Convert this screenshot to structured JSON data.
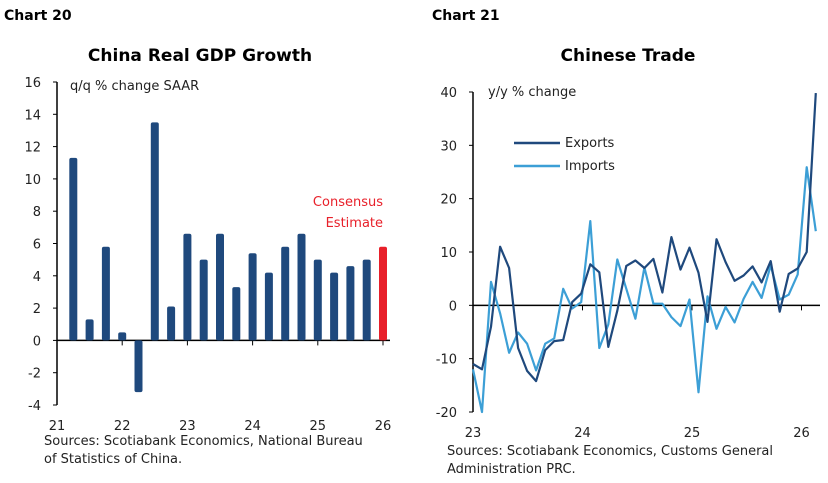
{
  "chart_data": [
    {
      "type": "bar",
      "header": "Chart 20",
      "title": "China Real GDP Growth",
      "ylabel": "q/q % change SAAR",
      "ylim": [
        -4,
        16
      ],
      "yticks": [
        16,
        14,
        12,
        10,
        8,
        6,
        4,
        2,
        0,
        -2,
        -4
      ],
      "xticks": [
        "21",
        "22",
        "23",
        "24",
        "25",
        "26"
      ],
      "values": [
        11.3,
        1.3,
        5.8,
        0.5,
        -3.2,
        13.5,
        2.1,
        6.6,
        5.0,
        6.6,
        3.3,
        5.4,
        4.2,
        5.8,
        6.6,
        5.0,
        4.2,
        4.6,
        5.0,
        5.8
      ],
      "bar_color": "#1f497d",
      "estimate_color": "#e8202a",
      "annotation": [
        "Consensus",
        "Estimate"
      ],
      "source": [
        "Sources: Scotiabank Economics, National Bureau",
        "of Statistics of China."
      ]
    },
    {
      "type": "line",
      "header": "Chart 21",
      "title": "Chinese Trade",
      "ylabel": "y/y % change",
      "ylim": [
        -20,
        40
      ],
      "yticks": [
        40,
        30,
        20,
        10,
        0,
        -10,
        -20
      ],
      "xticks": [
        "23",
        "24",
        "25",
        "26"
      ],
      "series": [
        {
          "name": "Exports",
          "color": "#1f497d",
          "values": [
            -11,
            -12,
            -4,
            11,
            7,
            -8,
            -12.3,
            -14.2,
            -8.4,
            -6.7,
            -6.5,
            0.6,
            2.2,
            7.7,
            6.2,
            -7.8,
            -1,
            7.4,
            8.4,
            7,
            8.7,
            2.4,
            12.8,
            6.7,
            10.8,
            6.1,
            -3.1,
            12.4,
            8.1,
            4.6,
            5.6,
            7.3,
            4.3,
            8.3,
            -1.2,
            5.9,
            6.9,
            10,
            39.8
          ]
        },
        {
          "name": "Imports",
          "color": "#3c9fd6",
          "values": [
            -12,
            -20,
            4.4,
            -1.5,
            -8.9,
            -5.1,
            -7.2,
            -12.2,
            -7.2,
            -6.2,
            3.1,
            -0.6,
            0.6,
            15.8,
            -8,
            -3.6,
            8.6,
            3.1,
            -2.5,
            7.1,
            0.3,
            0.3,
            -2.2,
            -3.9,
            1.1,
            -16.3,
            1.7,
            -4.4,
            -0.3,
            -3.2,
            1.2,
            4.4,
            1.4,
            7.5,
            1.1,
            2,
            5.8,
            25.9,
            13.9
          ]
        }
      ],
      "source": [
        "Sources: Scotiabank Economics, Customs General",
        "Administration PRC."
      ]
    }
  ]
}
